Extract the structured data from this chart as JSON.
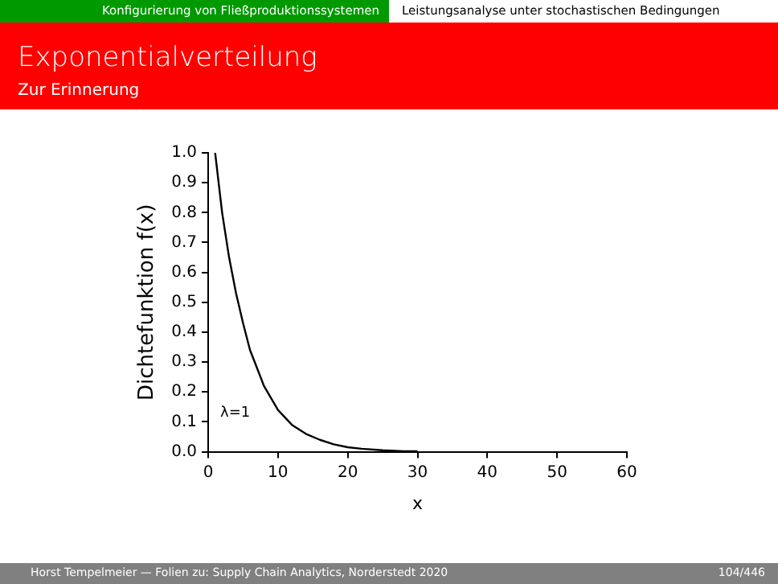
{
  "chart_data": {
    "type": "line",
    "title": "Exponentialverteilung",
    "subtitle": "Zur Erinnerung",
    "xlabel": "x",
    "ylabel": "Dichtefunktion f(x)",
    "annotations": [
      "Konfigurierung von Fließproduktionssystemen",
      "Leistungsanalyse unter stochastischen Bedingungen",
      "Horst Tempelmeier — Folien zu: Supply Chain Analytics, Norderstedt 2020",
      "104/446",
      "λ=1"
    ],
    "x": [
      1,
      2,
      3,
      4,
      5,
      6,
      7,
      8,
      10,
      12,
      14,
      16,
      18,
      20,
      22,
      25,
      28,
      30
    ],
    "series": [
      {
        "color": "#000000",
        "values": [
          1.0,
          0.8,
          0.65,
          0.53,
          0.43,
          0.34,
          0.28,
          0.22,
          0.14,
          0.09,
          0.06,
          0.04,
          0.025,
          0.015,
          0.01,
          0.005,
          0.002,
          0.002
        ]
      }
    ],
    "xlim": [
      0,
      60
    ],
    "xticks": [
      0,
      10,
      20,
      30,
      40,
      50,
      60
    ],
    "ylim": [
      0,
      1
    ],
    "yticks": [
      {
        "value": 0,
        "label": "0.0"
      },
      {
        "value": 0.1,
        "label": "0.1"
      },
      {
        "value": 0.2,
        "label": "0.2"
      },
      {
        "value": 0.3,
        "label": "0.3"
      },
      {
        "value": 0.4,
        "label": "0.4"
      },
      {
        "value": 0.5,
        "label": "0.5"
      },
      {
        "value": 0.6,
        "label": "0.6"
      },
      {
        "value": 0.7,
        "label": "0.7"
      },
      {
        "value": 0.8,
        "label": "0.8"
      },
      {
        "value": 0.9,
        "label": "0.9"
      },
      {
        "value": 1,
        "label": "1.0"
      }
    ],
    "grid": false,
    "legend": false,
    "marker": "none",
    "line_style": "solid"
  }
}
